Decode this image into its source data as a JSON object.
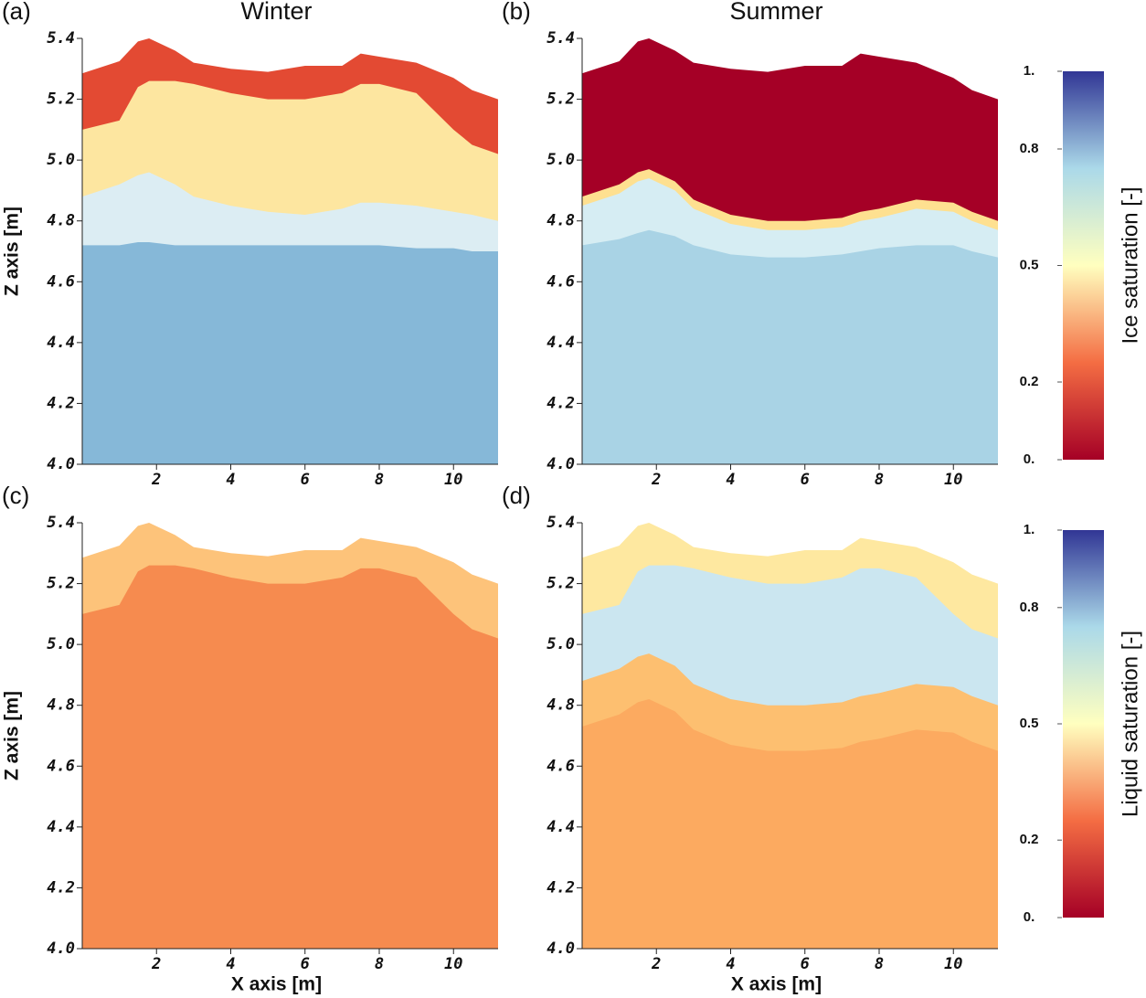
{
  "chart_data": [
    {
      "type": "area",
      "panel_label": "(a)",
      "title": "Winter",
      "ylabel": "Z axis [m]",
      "x": [
        0,
        1,
        1.5,
        1.8,
        2.5,
        3,
        4,
        5,
        6,
        7,
        7.5,
        8,
        9,
        10,
        10.5,
        11.2
      ],
      "xlim": [
        0,
        11.2
      ],
      "ylim": [
        4.0,
        5.4
      ],
      "xticks": [
        2,
        4,
        6,
        8,
        10
      ],
      "yticks": [
        {
          "value": 4.0,
          "label": "4.0"
        },
        4.2,
        4.4,
        4.6,
        4.8,
        {
          "value": 5.0,
          "label": "5.0"
        },
        5.2,
        5.4
      ],
      "layers": [
        {
          "color": "#e34a33",
          "top": [
            5.285,
            5.325,
            5.39,
            5.4,
            5.36,
            5.32,
            5.3,
            5.29,
            5.31,
            5.31,
            5.35,
            5.34,
            5.32,
            5.27,
            5.23,
            5.2
          ]
        },
        {
          "color": "#fde6a0",
          "top": [
            5.1,
            5.13,
            5.24,
            5.26,
            5.26,
            5.25,
            5.22,
            5.2,
            5.2,
            5.22,
            5.25,
            5.25,
            5.22,
            5.1,
            5.05,
            5.02
          ]
        },
        {
          "color": "#dcedf3",
          "top": [
            4.88,
            4.92,
            4.95,
            4.96,
            4.92,
            4.88,
            4.85,
            4.83,
            4.82,
            4.84,
            4.86,
            4.86,
            4.85,
            4.83,
            4.82,
            4.8
          ]
        },
        {
          "color": "#86b8d8",
          "top": [
            4.72,
            4.72,
            4.73,
            4.73,
            4.72,
            4.72,
            4.72,
            4.72,
            4.72,
            4.72,
            4.72,
            4.72,
            4.71,
            4.71,
            4.7,
            4.7
          ]
        }
      ]
    },
    {
      "type": "area",
      "panel_label": "(b)",
      "title": "Summer",
      "x": [
        0,
        1,
        1.5,
        1.8,
        2.5,
        3,
        4,
        5,
        6,
        7,
        7.5,
        8,
        9,
        10,
        10.5,
        11.2
      ],
      "xlim": [
        0,
        11.2
      ],
      "ylim": [
        4.0,
        5.4
      ],
      "xticks": [
        2,
        4,
        6,
        8,
        10
      ],
      "yticks": [
        {
          "value": 4.0,
          "label": "4.0"
        },
        4.2,
        4.4,
        4.6,
        4.8,
        {
          "value": 5.0,
          "label": "5.0"
        },
        5.2,
        5.4
      ],
      "layers": [
        {
          "color": "#a50026",
          "top": [
            5.285,
            5.325,
            5.39,
            5.4,
            5.36,
            5.32,
            5.3,
            5.29,
            5.31,
            5.31,
            5.35,
            5.34,
            5.32,
            5.27,
            5.23,
            5.2
          ]
        },
        {
          "color": "#fee090",
          "top": [
            4.88,
            4.92,
            4.96,
            4.97,
            4.93,
            4.87,
            4.82,
            4.8,
            4.8,
            4.81,
            4.83,
            4.84,
            4.87,
            4.86,
            4.83,
            4.8
          ]
        },
        {
          "color": "#d6edf3",
          "top": [
            4.85,
            4.89,
            4.93,
            4.94,
            4.9,
            4.84,
            4.79,
            4.77,
            4.77,
            4.78,
            4.8,
            4.81,
            4.84,
            4.83,
            4.8,
            4.77
          ]
        },
        {
          "color": "#a9d3e5",
          "top": [
            4.72,
            4.74,
            4.76,
            4.77,
            4.75,
            4.72,
            4.69,
            4.68,
            4.68,
            4.69,
            4.7,
            4.71,
            4.72,
            4.72,
            4.7,
            4.68
          ]
        }
      ]
    },
    {
      "type": "area",
      "panel_label": "(c)",
      "ylabel": "Z axis [m]",
      "xlabel": "X axis [m]",
      "x": [
        0,
        1,
        1.5,
        1.8,
        2.5,
        3,
        4,
        5,
        6,
        7,
        7.5,
        8,
        9,
        10,
        10.5,
        11.2
      ],
      "xlim": [
        0,
        11.2
      ],
      "ylim": [
        4.0,
        5.4
      ],
      "xticks": [
        2,
        4,
        6,
        8,
        10
      ],
      "yticks": [
        {
          "value": 4.0,
          "label": "4.0"
        },
        4.2,
        4.4,
        4.6,
        4.8,
        {
          "value": 5.0,
          "label": "5.0"
        },
        5.2,
        5.4
      ],
      "layers": [
        {
          "color": "#fdc37a",
          "top": [
            5.285,
            5.325,
            5.39,
            5.4,
            5.36,
            5.32,
            5.3,
            5.29,
            5.31,
            5.31,
            5.35,
            5.34,
            5.32,
            5.27,
            5.23,
            5.2
          ]
        },
        {
          "color": "#f68b4f",
          "top": [
            5.1,
            5.13,
            5.24,
            5.26,
            5.26,
            5.25,
            5.22,
            5.2,
            5.2,
            5.22,
            5.25,
            5.25,
            5.22,
            5.1,
            5.05,
            5.02
          ]
        }
      ]
    },
    {
      "type": "area",
      "panel_label": "(d)",
      "xlabel": "X axis [m]",
      "x": [
        0,
        1,
        1.5,
        1.8,
        2.5,
        3,
        4,
        5,
        6,
        7,
        7.5,
        8,
        9,
        10,
        10.5,
        11.2
      ],
      "xlim": [
        0,
        11.2
      ],
      "ylim": [
        4.0,
        5.4
      ],
      "xticks": [
        2,
        4,
        6,
        8,
        10
      ],
      "yticks": [
        {
          "value": 4.0,
          "label": "4.0"
        },
        4.2,
        4.4,
        4.6,
        4.8,
        {
          "value": 5.0,
          "label": "5.0"
        },
        5.2,
        5.4
      ],
      "layers": [
        {
          "color": "#fee8a0",
          "top": [
            5.285,
            5.325,
            5.39,
            5.4,
            5.36,
            5.32,
            5.3,
            5.29,
            5.31,
            5.31,
            5.35,
            5.34,
            5.32,
            5.27,
            5.23,
            5.2
          ]
        },
        {
          "color": "#cbe6f0",
          "top": [
            5.1,
            5.13,
            5.24,
            5.26,
            5.26,
            5.25,
            5.22,
            5.2,
            5.2,
            5.22,
            5.25,
            5.25,
            5.22,
            5.1,
            5.05,
            5.02
          ]
        },
        {
          "color": "#fdbf70",
          "top": [
            4.88,
            4.92,
            4.96,
            4.97,
            4.93,
            4.87,
            4.82,
            4.8,
            4.8,
            4.81,
            4.83,
            4.84,
            4.87,
            4.86,
            4.83,
            4.8
          ]
        },
        {
          "color": "#fcaa60",
          "top": [
            4.73,
            4.77,
            4.81,
            4.82,
            4.78,
            4.72,
            4.67,
            4.65,
            4.65,
            4.66,
            4.68,
            4.69,
            4.72,
            4.71,
            4.68,
            4.65
          ]
        }
      ]
    }
  ],
  "colorbars": [
    {
      "label": "Ice saturation [-]",
      "lim": [
        0,
        1
      ],
      "ticks": [
        {
          "value": 1,
          "label": "1."
        },
        0.8,
        0.5,
        0.2,
        {
          "value": 0,
          "label": "0."
        }
      ],
      "stops": [
        {
          "value": 0,
          "color": "#a50026"
        },
        {
          "value": 0.25,
          "color": "#f46d43"
        },
        {
          "value": 0.5,
          "color": "#ffffbf"
        },
        {
          "value": 0.75,
          "color": "#abd9e9"
        },
        {
          "value": 1,
          "color": "#313695"
        }
      ]
    },
    {
      "label": "Liquid saturation [-]",
      "lim": [
        0,
        1
      ],
      "ticks": [
        {
          "value": 1,
          "label": "1."
        },
        0.8,
        0.5,
        0.2,
        {
          "value": 0,
          "label": "0."
        }
      ],
      "stops": [
        {
          "value": 0,
          "color": "#a50026"
        },
        {
          "value": 0.25,
          "color": "#f46d43"
        },
        {
          "value": 0.5,
          "color": "#ffffbf"
        },
        {
          "value": 0.75,
          "color": "#abd9e9"
        },
        {
          "value": 1,
          "color": "#313695"
        }
      ]
    }
  ]
}
